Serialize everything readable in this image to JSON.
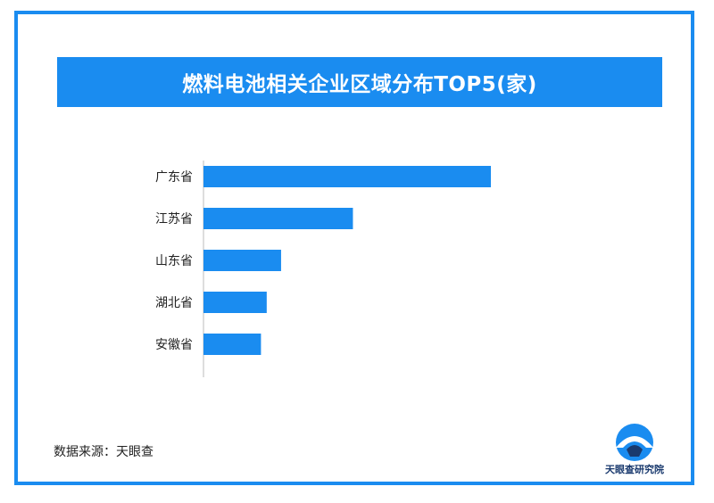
{
  "colors": {
    "accent": "#1a8cf0",
    "bar": "#1a8cf0",
    "axis": "#bbbbbb"
  },
  "chart_data": {
    "type": "bar",
    "orientation": "horizontal",
    "title": "燃料电池相关企业区域分布TOP5(家)",
    "categories": [
      "广东省",
      "江苏省",
      "山东省",
      "湖北省",
      "安徽省"
    ],
    "values": [
      100,
      52,
      27,
      22,
      20
    ],
    "xlim": [
      0,
      100
    ],
    "grid": false,
    "legend": "none"
  },
  "footer": {
    "source": "数据来源：天眼查",
    "logo_text": "天眼查研究院",
    "logo_icon": "tianyancha-logo-icon"
  }
}
